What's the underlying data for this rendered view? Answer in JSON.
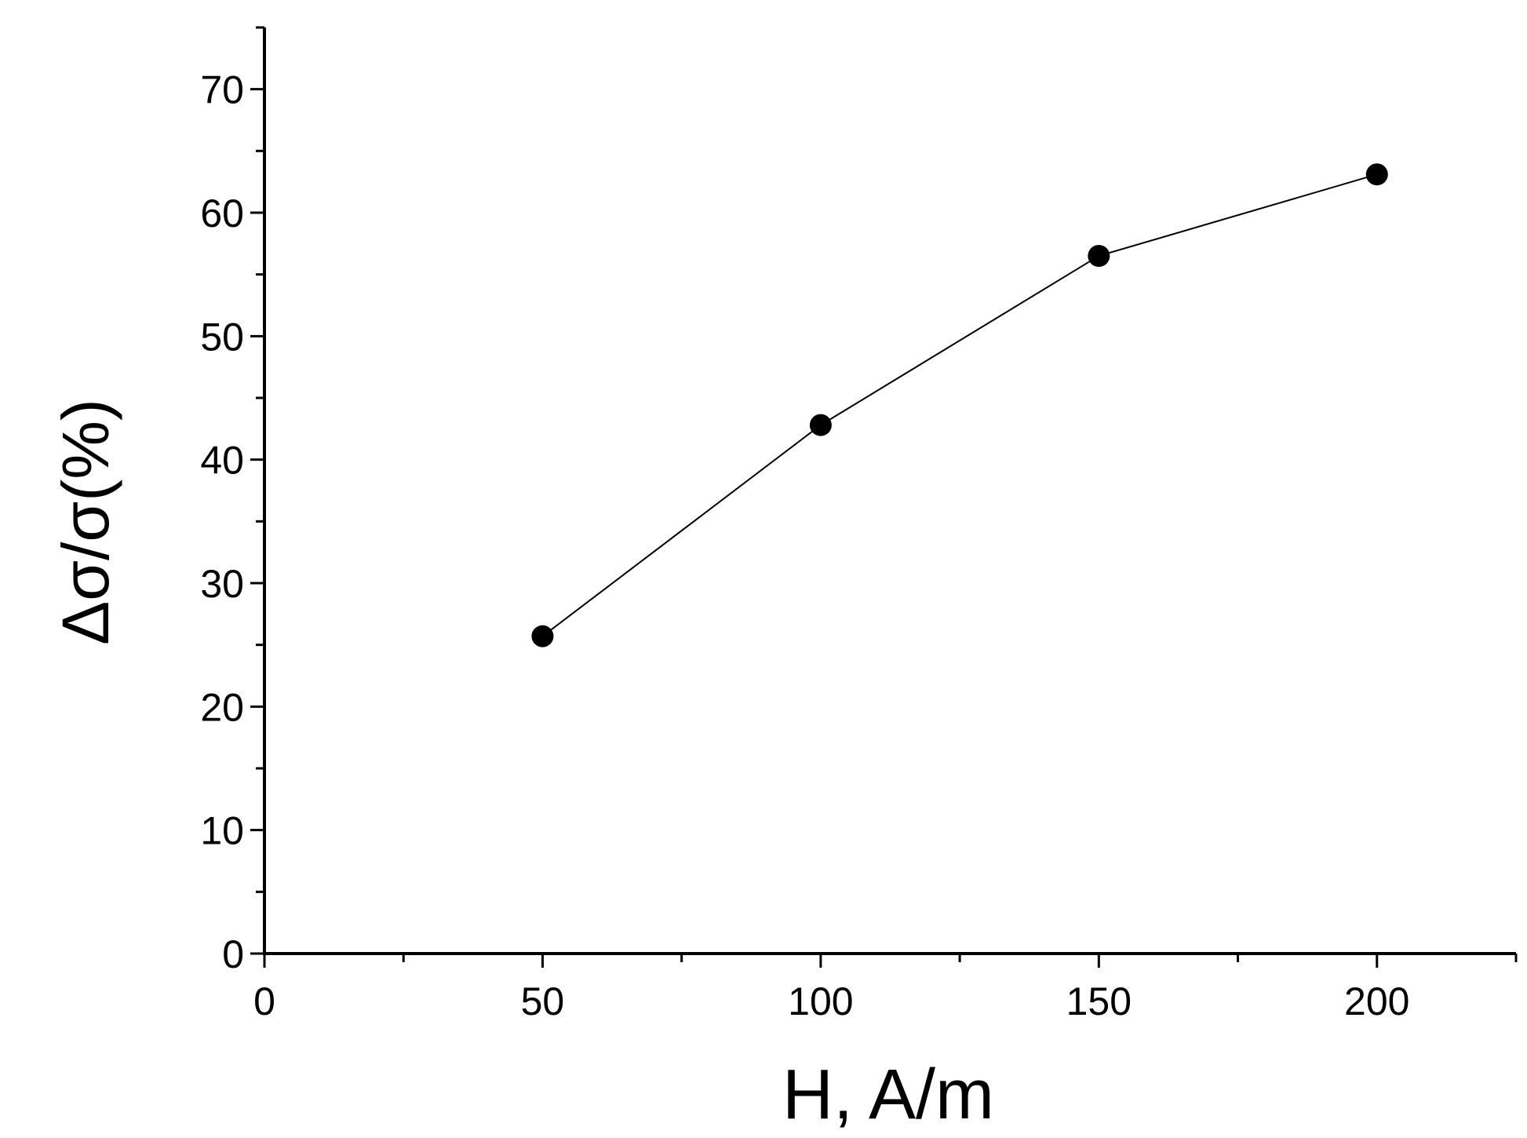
{
  "chart_data": {
    "type": "line",
    "title": "",
    "xlabel": "H, A/m",
    "ylabel": "Δσ/σ(%)",
    "xlim": [
      0,
      225
    ],
    "ylim": [
      0,
      75
    ],
    "x_ticks": [
      0,
      50,
      100,
      150,
      200
    ],
    "y_ticks": [
      0,
      10,
      20,
      30,
      40,
      50,
      60,
      70
    ],
    "x_tick_labels": [
      "0",
      "50",
      "100",
      "150",
      "200"
    ],
    "y_tick_labels": [
      "0",
      "10",
      "20",
      "30",
      "40",
      "50",
      "60",
      "70"
    ],
    "x_minor_step": 25,
    "y_minor_step": 5,
    "grid": false,
    "legend": "none",
    "series": [
      {
        "x": [
          50,
          100,
          150,
          200
        ],
        "values": [
          25.7,
          42.8,
          56.5,
          63.1
        ],
        "marker": "filled-circle",
        "color": "#000000"
      }
    ]
  }
}
